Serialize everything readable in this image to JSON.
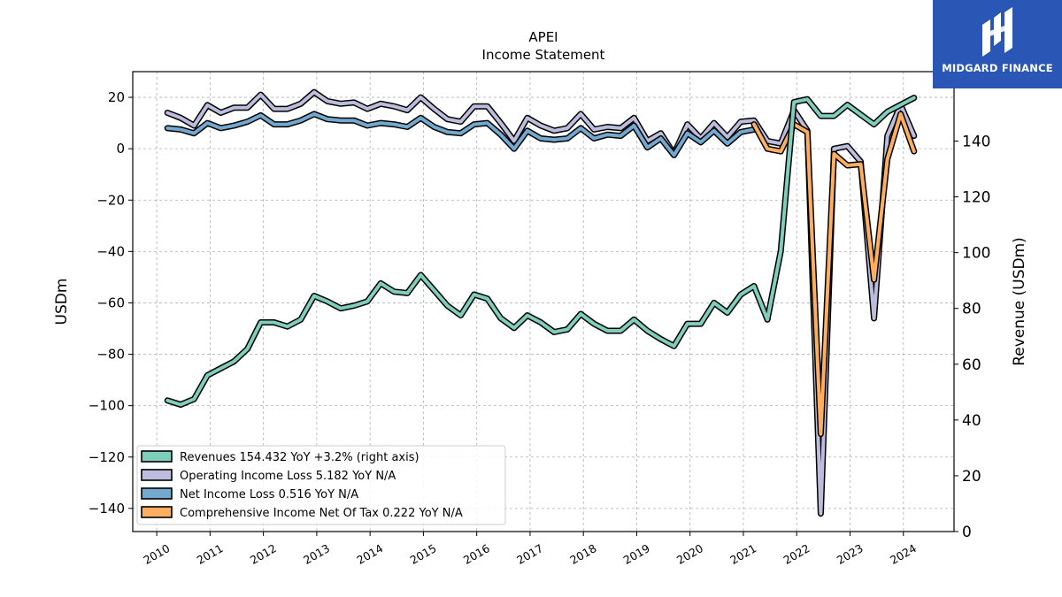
{
  "header": {
    "ticker": "APEI",
    "subtitle": "Income Statement"
  },
  "brand": {
    "name": "MIDGARD FINANCE",
    "color": "#2a57b5",
    "icon": "midgard-logo-icon"
  },
  "chart_data": {
    "type": "line",
    "title": "APEI",
    "subtitle": "Income Statement",
    "ylabel_left": "USDm",
    "ylabel_right": "Revenue (USDm)",
    "y_left_range": [
      -149,
      30
    ],
    "y_left_ticks": [
      20,
      0,
      -20,
      -40,
      -60,
      -80,
      -100,
      -120,
      -140
    ],
    "y_right_range": [
      0,
      164.9
    ],
    "y_right_ticks": [
      0,
      20,
      40,
      60,
      80,
      100,
      120,
      140
    ],
    "x_range": [
      2009.55,
      2024.95
    ],
    "x_ticks": [
      2010,
      2011,
      2012,
      2013,
      2014,
      2015,
      2016,
      2017,
      2018,
      2019,
      2020,
      2021,
      2022,
      2023,
      2024
    ],
    "grid": true,
    "legend_position": "lower-left",
    "series": [
      {
        "name": "Revenues",
        "legend": "Revenues  154.432 YoY +3.2% (right axis)",
        "axis": "right",
        "color": "#7fcdbb",
        "x": [
          2010.2,
          2010.45,
          2010.7,
          2010.95,
          2011.2,
          2011.45,
          2011.7,
          2011.95,
          2012.2,
          2012.45,
          2012.7,
          2012.95,
          2013.2,
          2013.45,
          2013.7,
          2013.95,
          2014.2,
          2014.45,
          2014.7,
          2014.95,
          2015.2,
          2015.45,
          2015.7,
          2015.95,
          2016.2,
          2016.45,
          2016.7,
          2016.95,
          2017.2,
          2017.45,
          2017.7,
          2017.95,
          2018.2,
          2018.45,
          2018.7,
          2018.95,
          2019.2,
          2019.45,
          2019.7,
          2019.95,
          2020.2,
          2020.45,
          2020.7,
          2020.95,
          2021.2,
          2021.45,
          2021.7,
          2021.95,
          2022.2,
          2022.45,
          2022.7,
          2022.95,
          2023.2,
          2023.45,
          2023.7,
          2023.95,
          2024.2
        ],
        "values": [
          47,
          45.5,
          47.5,
          56,
          58.5,
          61,
          65.5,
          75,
          75,
          73.5,
          76,
          84.5,
          82.5,
          80,
          81,
          82.5,
          89,
          86,
          85.5,
          92,
          86.5,
          81,
          77.5,
          85,
          83.5,
          76.5,
          73,
          77.5,
          75,
          71.5,
          72.5,
          78,
          74.5,
          72,
          72,
          76,
          72,
          69,
          66.5,
          74.5,
          74.5,
          82,
          78.5,
          85,
          88,
          76,
          100.5,
          154,
          155,
          149,
          149,
          153,
          149.5,
          146,
          150.5,
          153,
          155.5
        ]
      },
      {
        "name": "Operating Income Loss",
        "legend": "Operating Income Loss  5.182 YoY N/A",
        "axis": "left",
        "color": "#bcbddc",
        "x": [
          2010.2,
          2010.45,
          2010.7,
          2010.95,
          2011.2,
          2011.45,
          2011.7,
          2011.95,
          2012.2,
          2012.45,
          2012.7,
          2012.95,
          2013.2,
          2013.45,
          2013.7,
          2013.95,
          2014.2,
          2014.45,
          2014.7,
          2014.95,
          2015.2,
          2015.45,
          2015.7,
          2015.95,
          2016.2,
          2016.45,
          2016.7,
          2016.95,
          2017.2,
          2017.45,
          2017.7,
          2017.95,
          2018.2,
          2018.45,
          2018.7,
          2018.95,
          2019.2,
          2019.45,
          2019.7,
          2019.95,
          2020.2,
          2020.45,
          2020.7,
          2020.95,
          2021.2,
          2021.45,
          2021.7,
          2021.95,
          2022.2,
          2022.45,
          2022.7,
          2022.95,
          2023.2,
          2023.45,
          2023.7,
          2023.95,
          2024.2
        ],
        "values": [
          14,
          12,
          9,
          17,
          14,
          16,
          16,
          21,
          15.5,
          15.5,
          17.5,
          22,
          18.5,
          17.5,
          18,
          15.5,
          17.5,
          16.5,
          15,
          20,
          15.5,
          11.5,
          10.5,
          16.5,
          16.5,
          10,
          3,
          12,
          9,
          7,
          8,
          13.5,
          7.5,
          8.5,
          8,
          12,
          3,
          6,
          -2,
          9.5,
          4,
          10,
          4.5,
          10.5,
          11,
          3,
          2,
          15,
          7,
          -142,
          0,
          1,
          -5,
          -66,
          5,
          17,
          5
        ]
      },
      {
        "name": "Net Income Loss",
        "legend": "Net Income Loss  0.516 YoY N/A",
        "axis": "left",
        "color": "#74a9cf",
        "x": [
          2010.2,
          2010.45,
          2010.7,
          2010.95,
          2011.2,
          2011.45,
          2011.7,
          2011.95,
          2012.2,
          2012.45,
          2012.7,
          2012.95,
          2013.2,
          2013.45,
          2013.7,
          2013.95,
          2014.2,
          2014.45,
          2014.7,
          2014.95,
          2015.2,
          2015.45,
          2015.7,
          2015.95,
          2016.2,
          2016.45,
          2016.7,
          2016.95,
          2017.2,
          2017.45,
          2017.7,
          2017.95,
          2018.2,
          2018.45,
          2018.7,
          2018.95,
          2019.2,
          2019.45,
          2019.7,
          2019.95,
          2020.2,
          2020.45,
          2020.7,
          2020.95,
          2021.2
        ],
        "values": [
          8,
          7.5,
          6,
          10,
          8,
          9,
          10.5,
          13,
          9.5,
          9.5,
          11,
          13.5,
          11.5,
          11,
          11,
          9,
          10,
          9.5,
          8.5,
          12,
          8.5,
          6.5,
          6,
          9.5,
          10,
          5.5,
          0,
          7,
          4,
          3.5,
          4,
          8,
          4,
          5.5,
          5,
          9,
          0.5,
          4,
          -2.5,
          6,
          2.5,
          7,
          2,
          6.5,
          7.5
        ]
      },
      {
        "name": "Comprehensive Income Net Of Tax",
        "legend": "Comprehensive Income Net Of Tax  0.222 YoY N/A",
        "axis": "left",
        "color": "#fdae61",
        "x": [
          2021.2,
          2021.45,
          2021.7,
          2021.95,
          2022.2,
          2022.45,
          2022.7,
          2022.95,
          2023.2,
          2023.45,
          2023.7,
          2023.95,
          2024.2
        ],
        "values": [
          9.5,
          0,
          -1,
          9.5,
          6.5,
          -111,
          -2,
          -6.5,
          -6,
          -51,
          -4,
          13.5,
          -1
        ]
      }
    ]
  }
}
